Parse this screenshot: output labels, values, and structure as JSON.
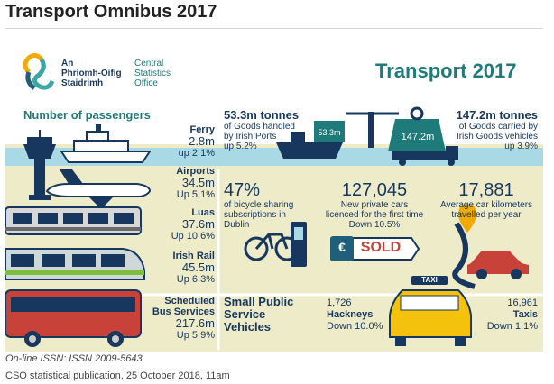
{
  "page": {
    "title": "Transport Omnibus 2017",
    "issn": "On-line ISSN: ISSN 2009-5643",
    "publication": "CSO statistical publication, 25 October 2018, 11am"
  },
  "logo": {
    "irish_line1": "An",
    "irish_line2": "Phríomh-Oifig",
    "irish_line3": "Staidrimh",
    "english_line1": "Central",
    "english_line2": "Statistics",
    "english_line3": "Office"
  },
  "header": {
    "title": "Transport 2017"
  },
  "passengers": {
    "heading": "Number of passengers",
    "items": [
      {
        "name": "Ferry",
        "value": "2.8m",
        "change": "up 2.1%"
      },
      {
        "name": "Airports",
        "value": "34.5m",
        "change": "Up 5.1%"
      },
      {
        "name": "Luas",
        "value": "37.6m",
        "change": "Up 10.6%"
      },
      {
        "name": "Irish Rail",
        "value": "45.5m",
        "change": "Up 6.3%"
      },
      {
        "name_line1": "Scheduled",
        "name_line2": "Bus Services",
        "value": "217.6m",
        "change": "Up 5.9%"
      }
    ]
  },
  "ports": {
    "value": "53.3m tonnes",
    "desc_line1": "of Goods handled",
    "desc_line2": "by Irish Ports",
    "change": "up 5.2%",
    "ship_label": "53.3m"
  },
  "goods_vehicles": {
    "value": "147.2m tonnes",
    "desc_line1": "of Goods carried by",
    "desc_line2": "Irish Goods vehicles",
    "change": "up 3.9%",
    "weight_label": "147.2m"
  },
  "bikes": {
    "value": "47%",
    "desc_line1": "of bicycle sharing",
    "desc_line2": "subscriptions in",
    "desc_line3": "Dublin"
  },
  "cars": {
    "value": "127,045",
    "desc_line1": "New private cars",
    "desc_line2": "licenced for the first time",
    "change": "Down 10.5%",
    "sold_label": "SOLD",
    "euro_symbol": "€"
  },
  "km": {
    "value": "17,881",
    "desc_line1": "Average car kilometers",
    "desc_line2": "travelled per year"
  },
  "spsv": {
    "heading_line1": "Small Public",
    "heading_line2": "Service",
    "heading_line3": "Vehicles",
    "hackneys_value": "1,726",
    "hackneys_label": "Hackneys",
    "hackneys_change": "Down 10.0%",
    "taxis_value": "16,961",
    "taxis_label": "Taxis",
    "taxis_change": "Down 1.1%",
    "taxi_sign": "TAXI"
  },
  "colors": {
    "navy": "#17375e",
    "teal": "#1f7a7a",
    "beige": "#eeebc9",
    "sea": "#a9d9e4",
    "red": "#c8423a",
    "yellow": "#f4c20d"
  }
}
